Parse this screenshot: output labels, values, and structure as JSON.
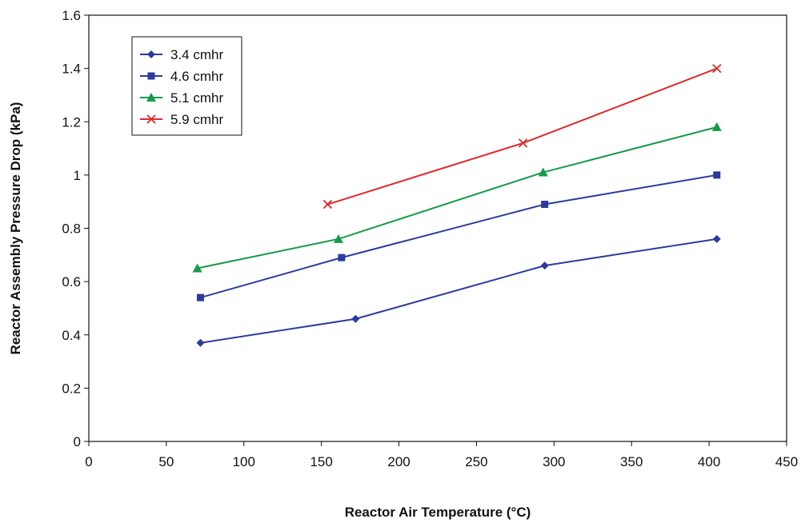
{
  "chart_data": {
    "type": "line",
    "title": "",
    "xlabel": "Reactor Air Temperature (°C)",
    "ylabel": "Reactor Assembly Pressure Drop (kPa)",
    "xlim": [
      0,
      450
    ],
    "ylim": [
      0,
      1.6
    ],
    "xticks": [
      0,
      50,
      100,
      150,
      200,
      250,
      300,
      350,
      400,
      450
    ],
    "yticks": [
      0,
      0.2,
      0.4,
      0.6,
      0.8,
      1,
      1.2,
      1.4,
      1.6
    ],
    "xtick_labels": [
      "0",
      "50",
      "100",
      "150",
      "200",
      "250",
      "300",
      "350",
      "400",
      "450"
    ],
    "ytick_labels": [
      "0",
      "0.2",
      "0.4",
      "0.6",
      "0.8",
      "1",
      "1.2",
      "1.4",
      "1.6"
    ],
    "grid": false,
    "legend_position": "top-left",
    "series": [
      {
        "name": "3.4 cmhr",
        "color": "#2b3a9e",
        "marker": "diamond",
        "x": [
          72,
          172,
          294,
          405
        ],
        "y": [
          0.37,
          0.46,
          0.66,
          0.76
        ]
      },
      {
        "name": "4.6 cmhr",
        "color": "#2b3a9e",
        "marker": "square",
        "x": [
          72,
          163,
          294,
          405
        ],
        "y": [
          0.54,
          0.69,
          0.89,
          1.0
        ]
      },
      {
        "name": "5.1 cmhr",
        "color": "#159a4a",
        "marker": "triangle",
        "x": [
          70,
          161,
          293,
          405
        ],
        "y": [
          0.65,
          0.76,
          1.01,
          1.18
        ]
      },
      {
        "name": "5.9 cmhr",
        "color": "#e02828",
        "marker": "x",
        "x": [
          154,
          280,
          405
        ],
        "y": [
          0.89,
          1.12,
          1.4
        ]
      }
    ]
  }
}
